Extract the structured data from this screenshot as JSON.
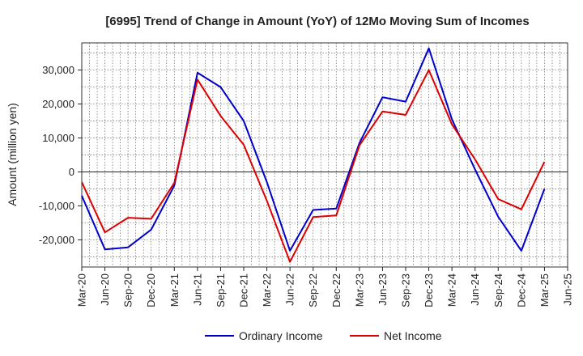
{
  "chart_data": {
    "type": "line",
    "title": "[6995]  Trend of Change in Amount (YoY) of 12Mo Moving Sum of Incomes",
    "xlabel": "",
    "ylabel": "Amount (million yen)",
    "ylim": [
      -28000,
      38000
    ],
    "yticks": [
      -20000,
      -10000,
      0,
      10000,
      20000,
      30000
    ],
    "ytick_labels": [
      "-20,000",
      "-10,000",
      "0",
      "10,000",
      "20,000",
      "30,000"
    ],
    "categories": [
      "Mar-20",
      "Jun-20",
      "Sep-20",
      "Dec-20",
      "Mar-21",
      "Jun-21",
      "Sep-21",
      "Dec-21",
      "Mar-22",
      "Jun-22",
      "Sep-22",
      "Dec-22",
      "Mar-23",
      "Jun-23",
      "Sep-23",
      "Dec-23",
      "Mar-24",
      "Jun-24",
      "Sep-24",
      "Dec-24",
      "Mar-25",
      "Jun-25"
    ],
    "grid": true,
    "legend_position": "bottom-center",
    "series": [
      {
        "name": "Ordinary Income",
        "color": "#0000cc",
        "values": [
          -7000,
          -22800,
          -22200,
          -17000,
          -4000,
          29200,
          25000,
          15000,
          -3000,
          -23200,
          -11200,
          -10800,
          8500,
          22000,
          20700,
          36400,
          15500,
          700,
          -13200,
          -23200,
          -5000,
          null
        ]
      },
      {
        "name": "Net Income",
        "color": "#dd0000",
        "values": [
          -3000,
          -17800,
          -13500,
          -13800,
          -3200,
          27200,
          16500,
          8000,
          -8500,
          -26500,
          -13300,
          -12800,
          7800,
          17800,
          16800,
          30000,
          14000,
          3700,
          -8000,
          -11000,
          3000,
          null
        ]
      }
    ]
  }
}
